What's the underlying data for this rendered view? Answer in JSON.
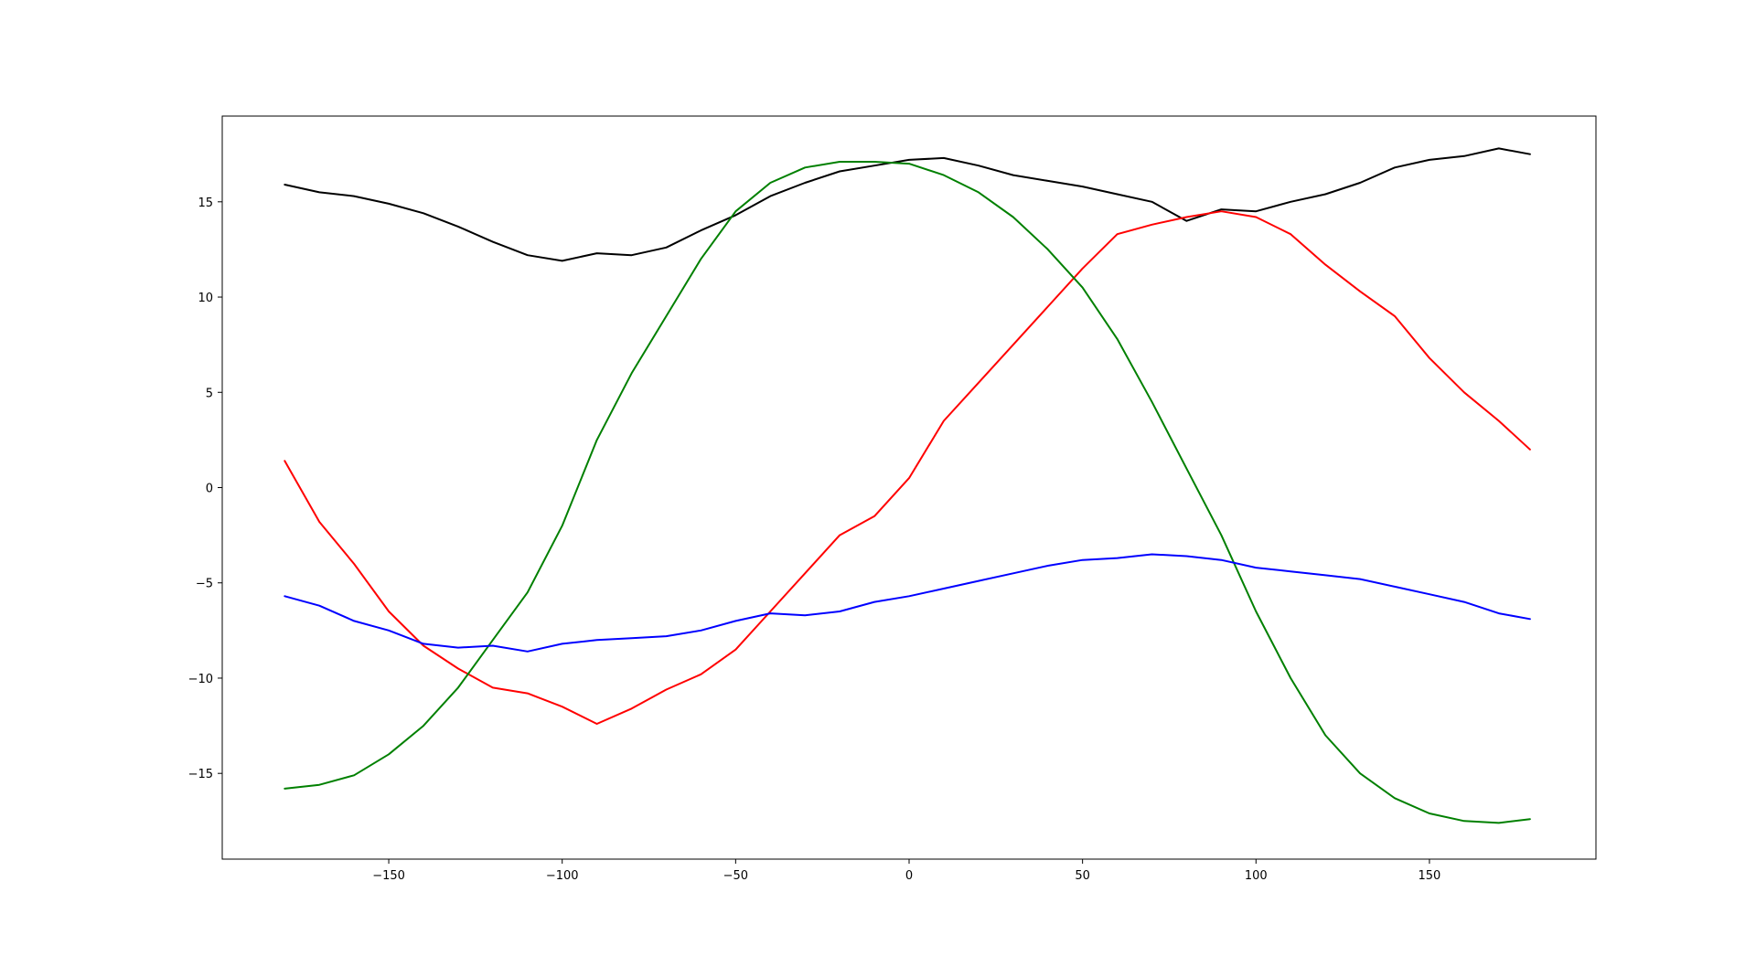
{
  "chart_data": {
    "type": "line",
    "title": "",
    "xlabel": "",
    "ylabel": "",
    "xlim": [
      -198,
      198
    ],
    "ylim": [
      -19.5,
      19.5
    ],
    "grid": false,
    "legend": "none",
    "xticks": [
      {
        "value": -150,
        "label": "−150"
      },
      {
        "value": -100,
        "label": "−100"
      },
      {
        "value": -50,
        "label": "−50"
      },
      {
        "value": 0,
        "label": "0"
      },
      {
        "value": 50,
        "label": "50"
      },
      {
        "value": 100,
        "label": "100"
      },
      {
        "value": 150,
        "label": "150"
      }
    ],
    "yticks": [
      {
        "value": 15,
        "label": "15"
      },
      {
        "value": 10,
        "label": "10"
      },
      {
        "value": 5,
        "label": "5"
      },
      {
        "value": 0,
        "label": "0"
      },
      {
        "value": -5,
        "label": "−5"
      },
      {
        "value": -10,
        "label": "−10"
      },
      {
        "value": -15,
        "label": "−15"
      }
    ],
    "x": [
      -180,
      -170,
      -160,
      -150,
      -140,
      -130,
      -120,
      -110,
      -100,
      -90,
      -80,
      -70,
      -60,
      -50,
      -40,
      -30,
      -20,
      -10,
      0,
      10,
      20,
      30,
      40,
      50,
      60,
      70,
      80,
      90,
      100,
      110,
      120,
      130,
      140,
      150,
      160,
      170,
      179
    ],
    "series": [
      {
        "color": "#000000",
        "values": [
          15.9,
          15.5,
          15.3,
          14.9,
          14.4,
          13.7,
          12.9,
          12.2,
          11.9,
          12.3,
          12.2,
          12.6,
          13.5,
          14.3,
          15.3,
          16.0,
          16.6,
          16.9,
          17.2,
          17.3,
          16.9,
          16.4,
          16.1,
          15.8,
          15.4,
          15.0,
          14.0,
          14.6,
          14.5,
          15.0,
          15.4,
          16.0,
          16.8,
          17.2,
          17.4,
          17.8,
          17.5
        ]
      },
      {
        "color": "#ff0000",
        "values": [
          1.4,
          -1.8,
          -4.0,
          -6.5,
          -8.3,
          -9.5,
          -10.5,
          -10.8,
          -11.5,
          -12.4,
          -11.6,
          -10.6,
          -9.8,
          -8.5,
          -6.5,
          -4.5,
          -2.5,
          -1.5,
          0.5,
          3.5,
          5.5,
          7.5,
          9.5,
          11.5,
          13.3,
          13.8,
          14.2,
          14.5,
          14.2,
          13.3,
          11.7,
          10.3,
          9.0,
          6.8,
          5.0,
          3.5,
          2.0
        ]
      },
      {
        "color": "#008000",
        "values": [
          -15.8,
          -15.6,
          -15.1,
          -14.0,
          -12.5,
          -10.5,
          -8.0,
          -5.5,
          -2.0,
          2.5,
          6.0,
          9.0,
          12.0,
          14.5,
          16.0,
          16.8,
          17.1,
          17.1,
          17.0,
          16.4,
          15.5,
          14.2,
          12.5,
          10.5,
          7.8,
          4.5,
          1.0,
          -2.5,
          -6.5,
          -10.0,
          -13.0,
          -15.0,
          -16.3,
          -17.1,
          -17.5,
          -17.6,
          -17.4
        ]
      },
      {
        "color": "#0000ff",
        "values": [
          -5.7,
          -6.2,
          -7.0,
          -7.5,
          -8.2,
          -8.4,
          -8.3,
          -8.6,
          -8.2,
          -8.0,
          -7.9,
          -7.8,
          -7.5,
          -7.0,
          -6.6,
          -6.7,
          -6.5,
          -6.0,
          -5.7,
          -5.3,
          -4.9,
          -4.5,
          -4.1,
          -3.8,
          -3.7,
          -3.5,
          -3.6,
          -3.8,
          -4.2,
          -4.4,
          -4.6,
          -4.8,
          -5.2,
          -5.6,
          -6.0,
          -6.6,
          -6.9
        ]
      }
    ]
  }
}
